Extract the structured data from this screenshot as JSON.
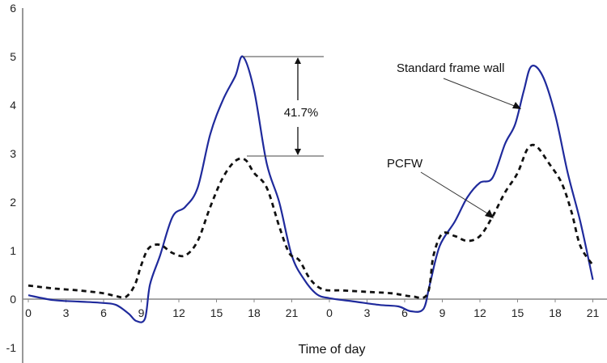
{
  "chart_data": {
    "type": "line",
    "xlabel": "Time of day",
    "ylabel": "",
    "ylim": [
      -1,
      6
    ],
    "yticks": [
      "-1",
      "0",
      "1",
      "2",
      "3",
      "4",
      "5",
      "6"
    ],
    "xticks": [
      "0",
      "3",
      "6",
      "9",
      "12",
      "15",
      "18",
      "21",
      "0",
      "3",
      "6",
      "9",
      "12",
      "15",
      "18",
      "21"
    ],
    "grid": false,
    "colors": {
      "standard": "#1f2a9c",
      "pcfw": "#111111"
    },
    "series": [
      {
        "name": "Standard frame wall",
        "style": "solid",
        "points": [
          [
            0,
            0.08
          ],
          [
            2,
            -0.02
          ],
          [
            4,
            -0.05
          ],
          [
            6,
            -0.08
          ],
          [
            7,
            -0.12
          ],
          [
            8,
            -0.3
          ],
          [
            8.6,
            -0.45
          ],
          [
            9.3,
            -0.4
          ],
          [
            9.7,
            0.3
          ],
          [
            10.5,
            0.9
          ],
          [
            11.5,
            1.7
          ],
          [
            12.5,
            1.9
          ],
          [
            13.5,
            2.3
          ],
          [
            14.5,
            3.4
          ],
          [
            15.5,
            4.1
          ],
          [
            16.5,
            4.6
          ],
          [
            17.1,
            5.0
          ],
          [
            18,
            4.3
          ],
          [
            19,
            2.8
          ],
          [
            20,
            2.0
          ],
          [
            21,
            0.9
          ],
          [
            22,
            0.4
          ],
          [
            23,
            0.1
          ],
          [
            24,
            0.02
          ],
          [
            26,
            -0.05
          ],
          [
            28,
            -0.12
          ],
          [
            29.5,
            -0.15
          ],
          [
            30.5,
            -0.25
          ],
          [
            31.5,
            -0.2
          ],
          [
            32,
            0.3
          ],
          [
            32.8,
            1.1
          ],
          [
            34,
            1.6
          ],
          [
            35,
            2.1
          ],
          [
            36,
            2.4
          ],
          [
            37,
            2.5
          ],
          [
            38,
            3.2
          ],
          [
            38.8,
            3.6
          ],
          [
            39.5,
            4.3
          ],
          [
            40.1,
            4.8
          ],
          [
            41,
            4.6
          ],
          [
            42,
            3.8
          ],
          [
            43,
            2.6
          ],
          [
            44,
            1.6
          ],
          [
            45,
            0.4
          ]
        ]
      },
      {
        "name": "PCFW",
        "style": "dashed",
        "points": [
          [
            0,
            0.28
          ],
          [
            2,
            0.22
          ],
          [
            4,
            0.18
          ],
          [
            6,
            0.12
          ],
          [
            7,
            0.06
          ],
          [
            7.8,
            0.05
          ],
          [
            8.5,
            0.3
          ],
          [
            9,
            0.7
          ],
          [
            9.6,
            1.05
          ],
          [
            10.5,
            1.12
          ],
          [
            11.5,
            0.95
          ],
          [
            12.5,
            0.9
          ],
          [
            13.5,
            1.2
          ],
          [
            14.5,
            1.9
          ],
          [
            15.5,
            2.5
          ],
          [
            16.5,
            2.85
          ],
          [
            17.3,
            2.87
          ],
          [
            18,
            2.6
          ],
          [
            19,
            2.3
          ],
          [
            20,
            1.5
          ],
          [
            20.8,
            0.95
          ],
          [
            21.6,
            0.8
          ],
          [
            22.5,
            0.4
          ],
          [
            23.5,
            0.2
          ],
          [
            25,
            0.18
          ],
          [
            27,
            0.15
          ],
          [
            29,
            0.12
          ],
          [
            30.5,
            0.06
          ],
          [
            31.8,
            0.1
          ],
          [
            32.3,
            0.9
          ],
          [
            33,
            1.35
          ],
          [
            34,
            1.3
          ],
          [
            35,
            1.2
          ],
          [
            36,
            1.3
          ],
          [
            37,
            1.7
          ],
          [
            38,
            2.2
          ],
          [
            39,
            2.6
          ],
          [
            39.8,
            3.1
          ],
          [
            40.5,
            3.15
          ],
          [
            41.5,
            2.8
          ],
          [
            42.5,
            2.4
          ],
          [
            43.3,
            1.8
          ],
          [
            44,
            1.1
          ],
          [
            45,
            0.7
          ]
        ]
      }
    ],
    "annotations": {
      "peak_diff": "41.7%",
      "standard_label": "Standard frame wall",
      "pcfw_label": "PCFW"
    }
  }
}
